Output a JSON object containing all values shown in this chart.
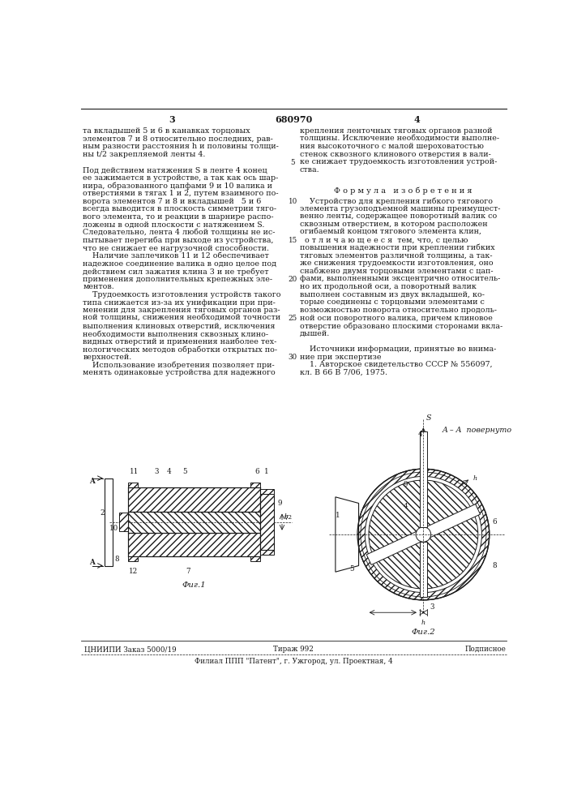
{
  "patent_number": "680970",
  "page_left": "3",
  "page_right": "4",
  "bg_color": "#ffffff",
  "text_color": "#1a1a1a",
  "font_size_body": 6.8,
  "font_size_header": 8.0,
  "left_col_lines": [
    "та вкладышей 5 и 6 в канавках торцовых",
    "элементов 7 и 8 относительно последних, рав-",
    "ным разности расстояния h и половины толщи-",
    "ны t/2 закрепляемой ленты 4.",
    "",
    "Под действием натяжения S в ленте 4 конец",
    "ее зажимается в устройстве, а так как ось шар-",
    "нира, образованного цапфами 9 и 10 валика и",
    "отверстиями в тягах 1 и 2, путем взаимного по-",
    "ворота элементов 7 и 8 и вкладышей   5 и 6",
    "всегда выводится в плоскость симметрии тяго-",
    "вого элемента, то и реакции в шарнире распо-",
    "ложены в одной плоскости с натяжением S.",
    "Следовательно, лента 4 любой толщины не ис-",
    "пытывает перегиба при выходе из устройства,",
    "что не снижает ее нагрузочной способности.",
    "    Наличие заплечиков 11 и 12 обеспечивает",
    "надежное соединение валика в одно целое под",
    "действием сил зажатия клина 3 и не требует",
    "применения дополнительных крепежных эле-",
    "ментов.",
    "    Трудоемкость изготовления устройств такого",
    "типа снижается из-за их унификации при при-",
    "менении для закрепления тяговых органов раз-",
    "ной толщины, снижения необходимой точности",
    "выполнения клиновых отверстий, исключения",
    "необходимости выполнения сквозных клино-",
    "видных отверстий и применения наиболее тех-",
    "нологических методов обработки открытых по-",
    "верхностей.",
    "    Использование изобретения позволяет при-",
    "менять одинаковые устройства для надежного"
  ],
  "right_col_lines_top": [
    "крепления ленточных тяговых органов разной",
    "толщины. Исключение необходимости выполне-",
    "ния высокоточного с малой шероховатостью",
    "стенок сквозного клинового отверстия в вали-",
    "ке снижает трудоемкость изготовления устрой-",
    "ства."
  ],
  "formula_header": "Ф о р м у л а   и з о б р е т е н и я",
  "right_col_formula_lines": [
    "    Устройство для крепления гибкого тягового",
    "элемента грузоподъемной машины преимущест-",
    "венно ленты, содержащее поворотный валик со",
    "сквозным отверстием, в котором расположен",
    "огибаемый концом тягового элемента клин,",
    "  о т л и ч а ю щ е е с я  тем, что, с целью",
    "повышения надежности при креплении гибких",
    "тяговых элементов различной толщины, а так-",
    "же снижения трудоемкости изготовления, оно",
    "снабжено двумя торцовыми элементами с цап-",
    "фами, выполненными эксцентрично относитель-",
    "но их продольной оси, а поворотный валик",
    "выполнен составным из двух вкладышей, ко-",
    "торые соединены с торцовыми элементами с",
    "возможностью поворота относительно продоль-",
    "ной оси поворотного валика, причем клиновое",
    "отверстие образовано плоскими сторонами вкла-",
    "дышей.",
    "",
    "    Источники информации, принятые во внима-",
    "ние при экспертизе",
    "    1. Авторское свидетельство СССР № 556097,",
    "кл. В 66 В 7/06, 1975."
  ],
  "line_numbers": [
    5,
    10,
    15,
    20,
    25,
    30
  ],
  "bottom_left": "ЦНИИПИ Заказ 5000/19",
  "bottom_center": "Тираж 992",
  "bottom_right": "Подписное",
  "bottom_line2": "Филиал ППП \"Патент\", г. Ужгород, ул. Проектная, 4",
  "fig1_label": "Фиг.1",
  "fig2_label": "Фиг.2"
}
